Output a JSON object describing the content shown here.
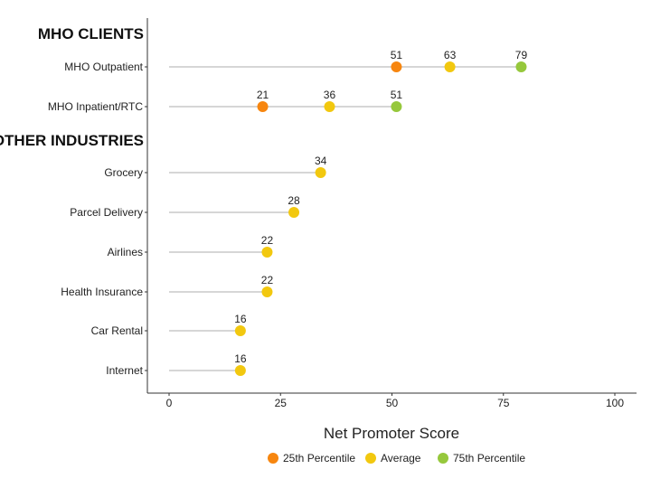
{
  "chart_data": {
    "type": "dot-lollipop",
    "xlabel": "Net Promoter Score",
    "xlim": [
      0,
      100
    ],
    "xticks": [
      0,
      25,
      50,
      75,
      100
    ],
    "grid": false,
    "legend_position": "bottom",
    "legend": [
      {
        "name": "25th Percentile",
        "color": "#F7860F"
      },
      {
        "name": "Average",
        "color": "#F2C80F"
      },
      {
        "name": "75th Percentile",
        "color": "#96C83C"
      }
    ],
    "groups": [
      {
        "title": "MHO CLIENTS",
        "rows": [
          {
            "label": "MHO Outpatient",
            "p25": 51,
            "avg": 63,
            "p75": 79
          },
          {
            "label": "MHO Inpatient/RTC",
            "p25": 21,
            "avg": 36,
            "p75": 51
          }
        ]
      },
      {
        "title": "OTHER INDUSTRIES",
        "rows": [
          {
            "label": "Grocery",
            "avg": 34
          },
          {
            "label": "Parcel Delivery",
            "avg": 28
          },
          {
            "label": "Airlines",
            "avg": 22
          },
          {
            "label": "Health Insurance",
            "avg": 22
          },
          {
            "label": "Car Rental",
            "avg": 16
          },
          {
            "label": "Internet",
            "avg": 16
          }
        ]
      }
    ]
  }
}
